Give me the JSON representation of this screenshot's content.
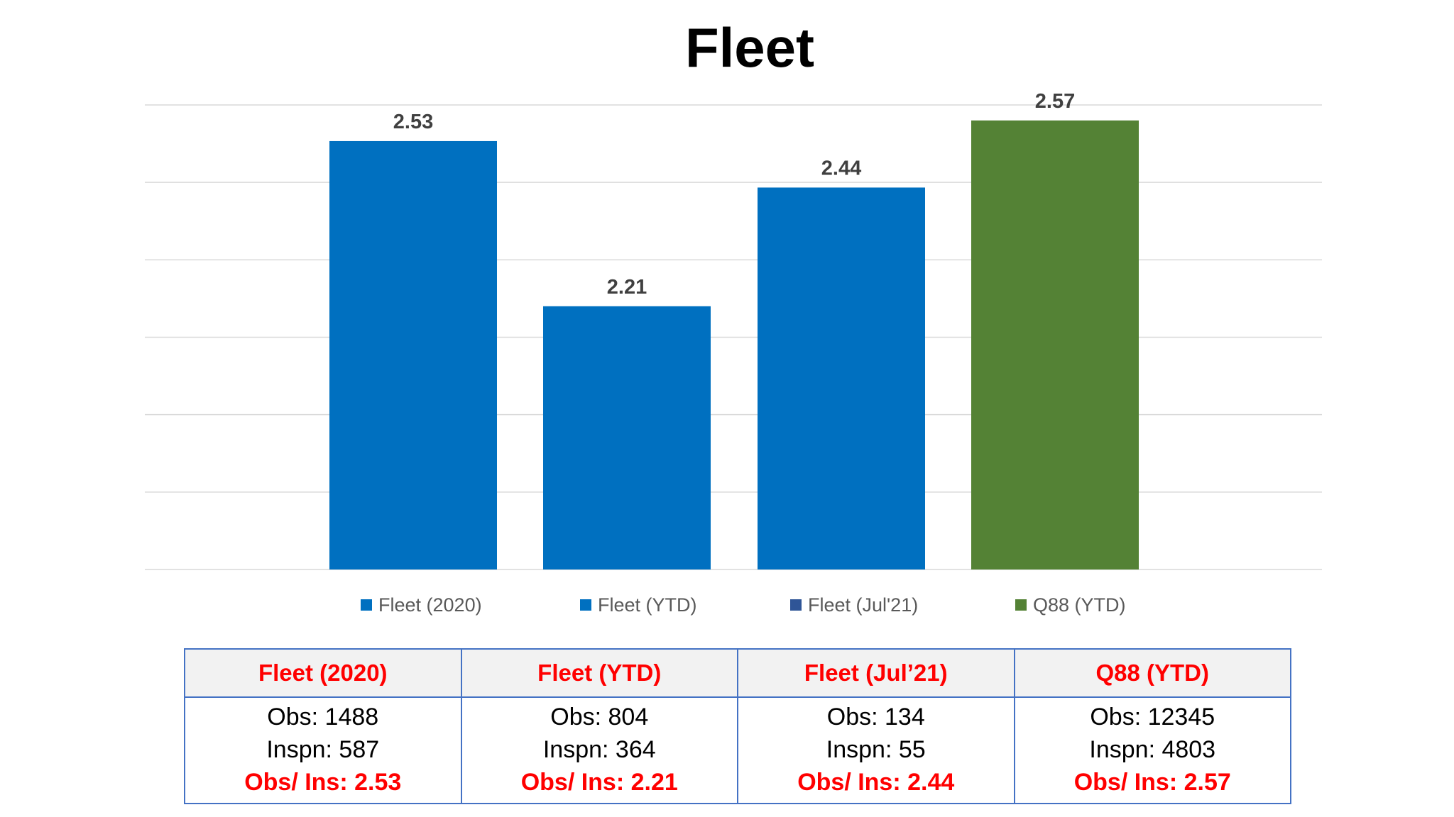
{
  "chart_data": {
    "type": "bar",
    "title": "Fleet",
    "categories": [
      "Fleet (2020)",
      "Fleet (YTD)",
      "Fleet (Jul'21)",
      "Q88 (YTD)"
    ],
    "values": [
      2.53,
      2.21,
      2.44,
      2.57
    ],
    "data_labels": [
      "2.53",
      "2.21",
      "2.44",
      "2.57"
    ],
    "colors": [
      "#0070c0",
      "#0070c0",
      "#0070c0",
      "#548235"
    ],
    "legend_colors": [
      "#0070c0",
      "#0070c0",
      "#2f5597",
      "#548235"
    ],
    "ylim": [
      1.7,
      2.6
    ],
    "gridlines": [
      1.7,
      1.85,
      2.0,
      2.15,
      2.3,
      2.45,
      2.6
    ],
    "grid": true,
    "legend_position": "bottom"
  },
  "table": {
    "headers": [
      "Fleet (2020)",
      "Fleet (YTD)",
      "Fleet (Jul’21)",
      "Q88 (YTD)"
    ],
    "rows": [
      {
        "obs": "Obs: 1488",
        "inspn": "Inspn: 587",
        "ratio": "Obs/ Ins: 2.53"
      },
      {
        "obs": "Obs: 804",
        "inspn": "Inspn: 364",
        "ratio": "Obs/ Ins: 2.21"
      },
      {
        "obs": "Obs: 134",
        "inspn": "Inspn: 55",
        "ratio": "Obs/ Ins: 2.44"
      },
      {
        "obs": "Obs: 12345",
        "inspn": "Inspn: 4803",
        "ratio": "Obs/ Ins: 2.57"
      }
    ]
  }
}
